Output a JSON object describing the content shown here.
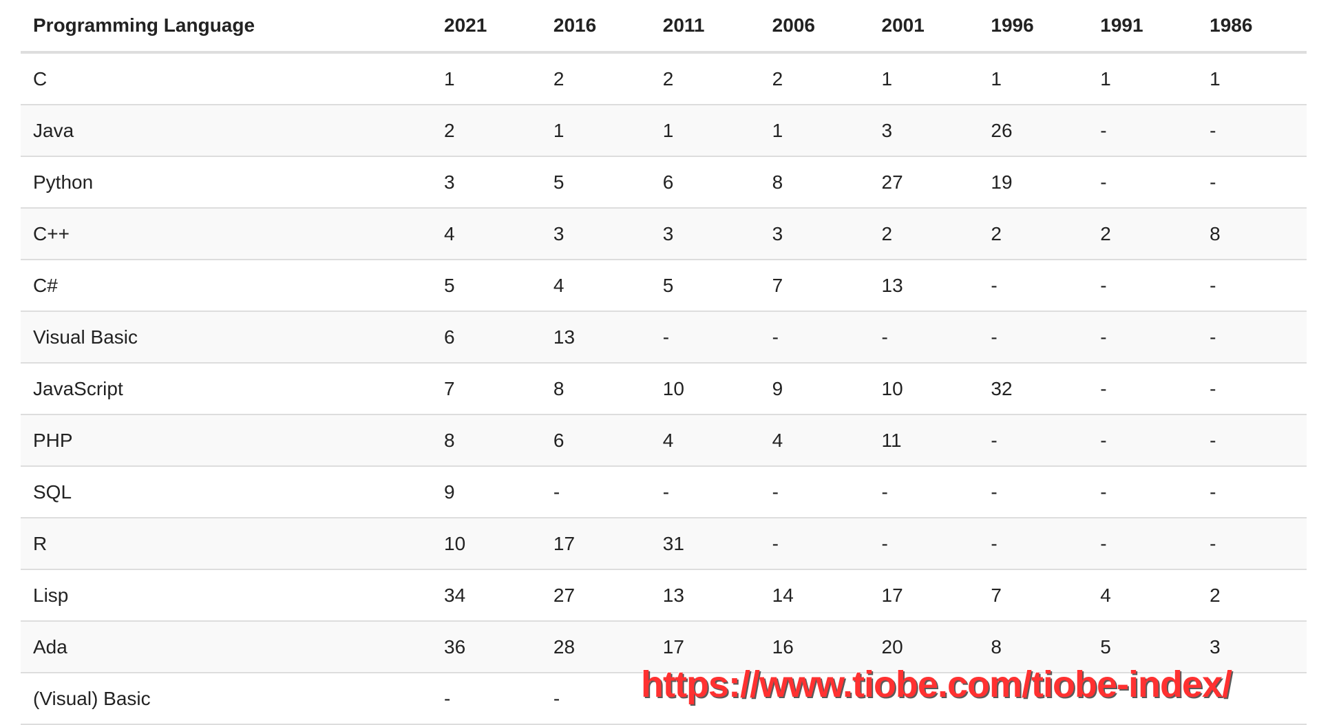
{
  "table": {
    "headers": [
      "Programming Language",
      "2021",
      "2016",
      "2011",
      "2006",
      "2001",
      "1996",
      "1991",
      "1986"
    ],
    "rows": [
      [
        "C",
        "1",
        "2",
        "2",
        "2",
        "1",
        "1",
        "1",
        "1"
      ],
      [
        "Java",
        "2",
        "1",
        "1",
        "1",
        "3",
        "26",
        "-",
        "-"
      ],
      [
        "Python",
        "3",
        "5",
        "6",
        "8",
        "27",
        "19",
        "-",
        "-"
      ],
      [
        "C++",
        "4",
        "3",
        "3",
        "3",
        "2",
        "2",
        "2",
        "8"
      ],
      [
        "C#",
        "5",
        "4",
        "5",
        "7",
        "13",
        "-",
        "-",
        "-"
      ],
      [
        "Visual Basic",
        "6",
        "13",
        "-",
        "-",
        "-",
        "-",
        "-",
        "-"
      ],
      [
        "JavaScript",
        "7",
        "8",
        "10",
        "9",
        "10",
        "32",
        "-",
        "-"
      ],
      [
        "PHP",
        "8",
        "6",
        "4",
        "4",
        "11",
        "-",
        "-",
        "-"
      ],
      [
        "SQL",
        "9",
        "-",
        "-",
        "-",
        "-",
        "-",
        "-",
        "-"
      ],
      [
        "R",
        "10",
        "17",
        "31",
        "-",
        "-",
        "-",
        "-",
        "-"
      ],
      [
        "Lisp",
        "34",
        "27",
        "13",
        "14",
        "17",
        "7",
        "4",
        "2"
      ],
      [
        "Ada",
        "36",
        "28",
        "17",
        "16",
        "20",
        "8",
        "5",
        "3"
      ],
      [
        "(Visual) Basic",
        "-",
        "-",
        "",
        "",
        "",
        "",
        "",
        ""
      ]
    ]
  },
  "watermark": {
    "text": "https://www.tiobe.com/tiobe-index/"
  },
  "colors": {
    "text": "#222222",
    "stripe": "#f9f9f9",
    "border": "#dddddd",
    "watermark": "#ff3131"
  }
}
